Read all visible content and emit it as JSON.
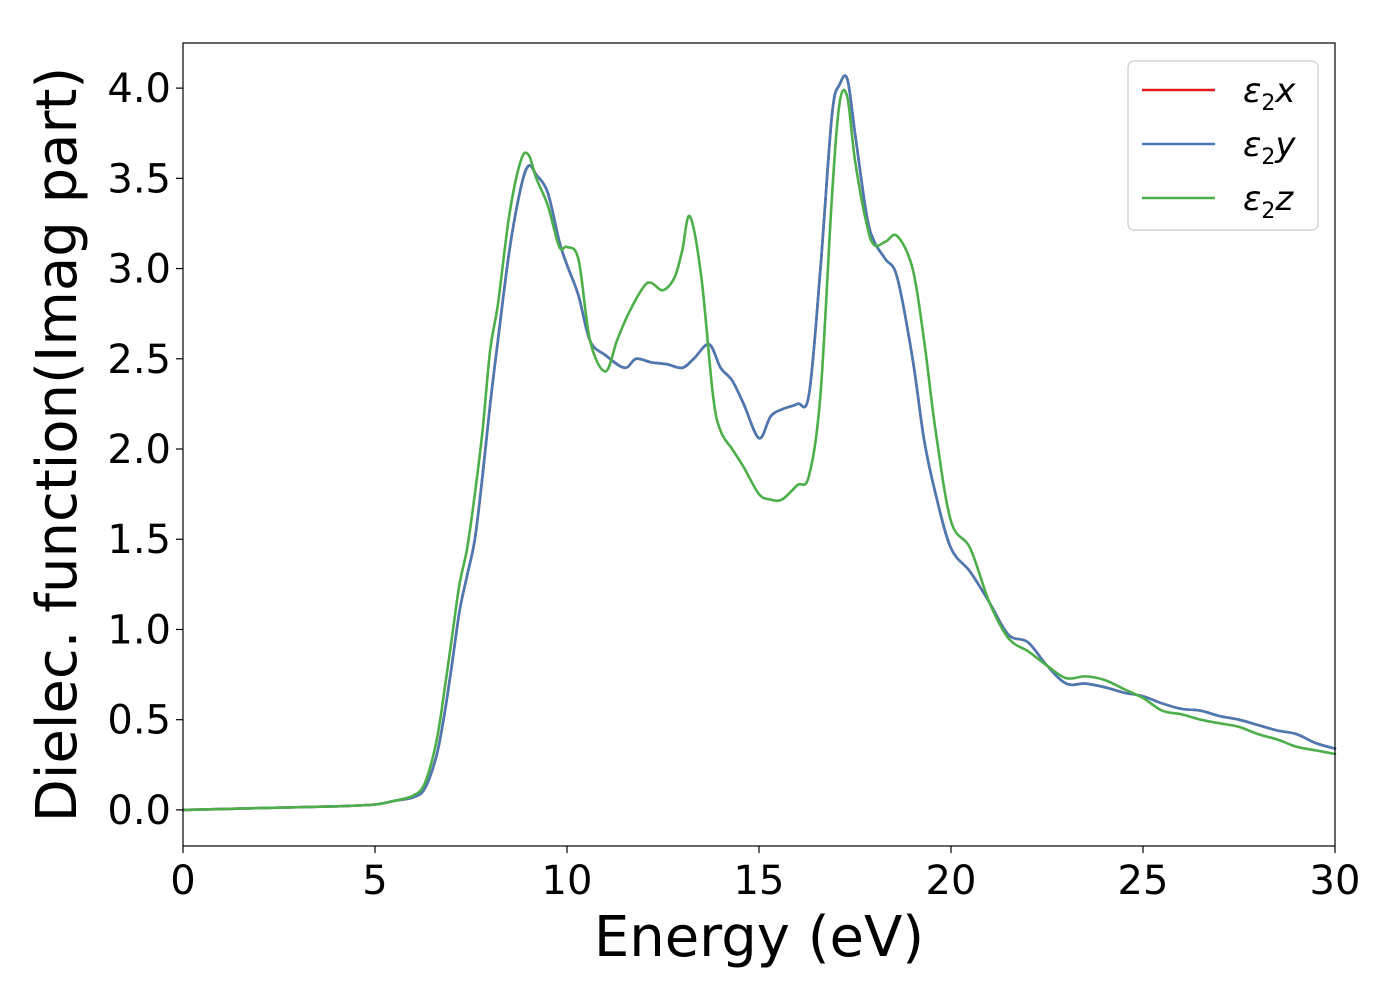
{
  "chart_data": {
    "type": "line",
    "title": "",
    "xlabel": "Energy (eV)",
    "ylabel": "Dielec. function(Imag part)",
    "xlim": [
      0,
      30
    ],
    "ylim": [
      -0.2,
      4.25
    ],
    "x_ticks": [
      0,
      5,
      10,
      15,
      20,
      25,
      30
    ],
    "x_tick_labels": [
      "0",
      "5",
      "10",
      "15",
      "20",
      "25",
      "30"
    ],
    "y_ticks": [
      0.0,
      0.5,
      1.0,
      1.5,
      2.0,
      2.5,
      3.0,
      3.5,
      4.0
    ],
    "y_tick_labels": [
      "0.0",
      "0.5",
      "1.0",
      "1.5",
      "2.0",
      "2.5",
      "3.0",
      "3.5",
      "4.0"
    ],
    "grid": false,
    "legend_position": "top-right",
    "series": [
      {
        "name": "ε2x",
        "legend": {
          "symbol": "ε",
          "sub": "2",
          "var": "x"
        },
        "color": "#e41a1c",
        "x": [
          0,
          2,
          4,
          5,
          5.5,
          6,
          6.3,
          6.6,
          6.8,
          7.0,
          7.2,
          7.4,
          7.6,
          7.8,
          8.0,
          8.2,
          8.5,
          8.8,
          9.0,
          9.2,
          9.5,
          9.8,
          10.0,
          10.3,
          10.6,
          11.0,
          11.5,
          11.8,
          12.2,
          12.6,
          13.0,
          13.3,
          13.7,
          14.0,
          14.3,
          14.6,
          15.0,
          15.3,
          15.6,
          16.0,
          16.3,
          16.6,
          16.9,
          17.1,
          17.3,
          17.5,
          17.8,
          18.0,
          18.3,
          18.6,
          19.0,
          19.3,
          19.6,
          20.0,
          20.5,
          21.0,
          21.5,
          22.0,
          22.5,
          23.0,
          23.5,
          24.0,
          24.5,
          25.0,
          25.5,
          26.0,
          26.5,
          27.0,
          27.5,
          28.0,
          28.5,
          29.0,
          29.5,
          30.0
        ],
        "y": [
          0.0,
          0.01,
          0.02,
          0.03,
          0.05,
          0.07,
          0.12,
          0.3,
          0.52,
          0.8,
          1.1,
          1.3,
          1.5,
          1.85,
          2.25,
          2.6,
          3.1,
          3.45,
          3.57,
          3.52,
          3.42,
          3.15,
          3.02,
          2.85,
          2.6,
          2.52,
          2.45,
          2.5,
          2.48,
          2.47,
          2.45,
          2.5,
          2.58,
          2.45,
          2.38,
          2.25,
          2.06,
          2.18,
          2.22,
          2.25,
          2.3,
          3.0,
          3.85,
          4.02,
          4.05,
          3.75,
          3.3,
          3.15,
          3.05,
          2.95,
          2.5,
          2.05,
          1.75,
          1.45,
          1.32,
          1.15,
          0.97,
          0.93,
          0.8,
          0.7,
          0.7,
          0.68,
          0.65,
          0.63,
          0.59,
          0.56,
          0.55,
          0.52,
          0.5,
          0.47,
          0.44,
          0.42,
          0.37,
          0.34
        ]
      },
      {
        "name": "ε2y",
        "legend": {
          "symbol": "ε",
          "sub": "2",
          "var": "y"
        },
        "color": "#4a7ab3",
        "x": [
          0,
          2,
          4,
          5,
          5.5,
          6,
          6.3,
          6.6,
          6.8,
          7.0,
          7.2,
          7.4,
          7.6,
          7.8,
          8.0,
          8.2,
          8.5,
          8.8,
          9.0,
          9.2,
          9.5,
          9.8,
          10.0,
          10.3,
          10.6,
          11.0,
          11.5,
          11.8,
          12.2,
          12.6,
          13.0,
          13.3,
          13.7,
          14.0,
          14.3,
          14.6,
          15.0,
          15.3,
          15.6,
          16.0,
          16.3,
          16.6,
          16.9,
          17.1,
          17.3,
          17.5,
          17.8,
          18.0,
          18.3,
          18.6,
          19.0,
          19.3,
          19.6,
          20.0,
          20.5,
          21.0,
          21.5,
          22.0,
          22.5,
          23.0,
          23.5,
          24.0,
          24.5,
          25.0,
          25.5,
          26.0,
          26.5,
          27.0,
          27.5,
          28.0,
          28.5,
          29.0,
          29.5,
          30.0
        ],
        "y": [
          0.0,
          0.01,
          0.02,
          0.03,
          0.05,
          0.07,
          0.12,
          0.3,
          0.52,
          0.8,
          1.1,
          1.3,
          1.5,
          1.85,
          2.25,
          2.6,
          3.1,
          3.45,
          3.57,
          3.52,
          3.42,
          3.15,
          3.02,
          2.85,
          2.6,
          2.52,
          2.45,
          2.5,
          2.48,
          2.47,
          2.45,
          2.5,
          2.58,
          2.45,
          2.38,
          2.25,
          2.06,
          2.18,
          2.22,
          2.25,
          2.3,
          3.0,
          3.85,
          4.02,
          4.05,
          3.75,
          3.3,
          3.15,
          3.05,
          2.95,
          2.5,
          2.05,
          1.75,
          1.45,
          1.32,
          1.15,
          0.97,
          0.93,
          0.8,
          0.7,
          0.7,
          0.68,
          0.65,
          0.63,
          0.59,
          0.56,
          0.55,
          0.52,
          0.5,
          0.47,
          0.44,
          0.42,
          0.37,
          0.34
        ]
      },
      {
        "name": "ε2z",
        "legend": {
          "symbol": "ε",
          "sub": "2",
          "var": "z"
        },
        "color": "#4daf4a",
        "x": [
          0,
          2,
          4,
          5,
          5.5,
          6,
          6.3,
          6.6,
          6.8,
          7.0,
          7.2,
          7.4,
          7.6,
          7.8,
          8.0,
          8.2,
          8.5,
          8.8,
          9.0,
          9.2,
          9.5,
          9.8,
          10.0,
          10.3,
          10.6,
          11.0,
          11.3,
          11.6,
          12.0,
          12.2,
          12.5,
          12.8,
          13.0,
          13.2,
          13.5,
          13.8,
          14.0,
          14.3,
          14.6,
          15.0,
          15.3,
          15.6,
          16.0,
          16.3,
          16.6,
          16.9,
          17.1,
          17.3,
          17.5,
          17.8,
          18.0,
          18.3,
          18.6,
          19.0,
          19.3,
          19.6,
          20.0,
          20.5,
          21.0,
          21.5,
          22.0,
          22.5,
          23.0,
          23.5,
          24.0,
          24.5,
          25.0,
          25.5,
          26.0,
          26.5,
          27.0,
          27.5,
          28.0,
          28.5,
          29.0,
          29.5,
          30.0
        ],
        "y": [
          0.0,
          0.01,
          0.02,
          0.03,
          0.05,
          0.08,
          0.15,
          0.38,
          0.65,
          0.95,
          1.25,
          1.45,
          1.75,
          2.1,
          2.55,
          2.8,
          3.3,
          3.6,
          3.63,
          3.5,
          3.35,
          3.12,
          3.12,
          3.05,
          2.6,
          2.43,
          2.6,
          2.75,
          2.9,
          2.92,
          2.88,
          2.95,
          3.1,
          3.29,
          2.95,
          2.3,
          2.1,
          2.0,
          1.9,
          1.75,
          1.72,
          1.72,
          1.8,
          1.85,
          2.3,
          3.4,
          3.92,
          3.95,
          3.6,
          3.25,
          3.13,
          3.15,
          3.18,
          3.0,
          2.6,
          2.1,
          1.6,
          1.45,
          1.15,
          0.95,
          0.88,
          0.8,
          0.73,
          0.74,
          0.72,
          0.67,
          0.62,
          0.55,
          0.53,
          0.5,
          0.48,
          0.46,
          0.42,
          0.39,
          0.35,
          0.33,
          0.31
        ]
      }
    ]
  }
}
